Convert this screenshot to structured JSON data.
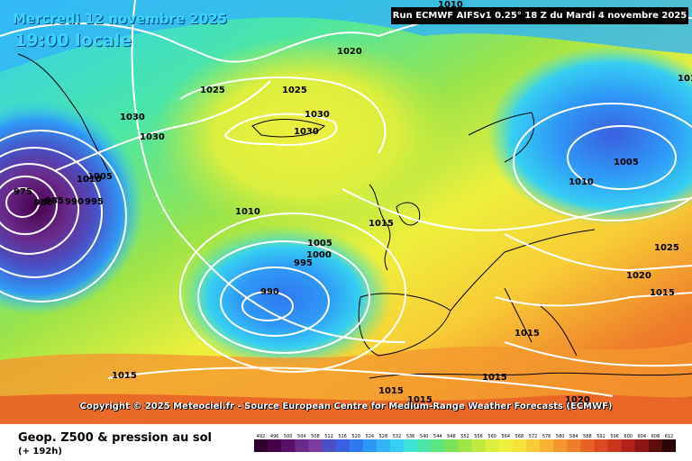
{
  "header": {
    "date_title": "Mercredi 12 novembre 2025",
    "local_time": "19:00 locale",
    "run_info": "Run ECMWF AIFSv1 0.25° 18 Z du Mardi 4 novembre 2025"
  },
  "copyright": "Copyright © 2025 Meteociel.fr - Source European Centre for Medium-Range Weather Forecasts (ECMWF)",
  "footer": {
    "title": "Geop. Z500 & pression au sol",
    "subtitle": "(+ 192h)"
  },
  "legend": {
    "values": [
      "492",
      "496",
      "500",
      "504",
      "508",
      "512",
      "516",
      "520",
      "524",
      "528",
      "532",
      "536",
      "540",
      "544",
      "548",
      "552",
      "556",
      "560",
      "564",
      "568",
      "572",
      "576",
      "580",
      "584",
      "588",
      "592",
      "596",
      "600",
      "604",
      "608",
      "612"
    ],
    "colors": [
      "#2b002b",
      "#46004a",
      "#5c0f6a",
      "#6a2a8a",
      "#7a3a9e",
      "#4a4fc4",
      "#3a5fe0",
      "#2f79f0",
      "#2f98f7",
      "#32b4f7",
      "#36cff2",
      "#3de3d8",
      "#49e6a8",
      "#5ee67e",
      "#7de45a",
      "#9ee447",
      "#bfe93f",
      "#dcee3e",
      "#eef03d",
      "#f7e23a",
      "#f8cc36",
      "#f7b232",
      "#f4982e",
      "#ef7e2a",
      "#e86226",
      "#dc4a22",
      "#c8361e",
      "#b0221a",
      "#8c1616",
      "#5e0d0d",
      "#2a0505"
    ]
  },
  "isobars": [
    "1010",
    "1015",
    "1020",
    "1025",
    "1025",
    "1030",
    "1030",
    "1030",
    "1030",
    "1010",
    "1005",
    "975",
    "980",
    "985",
    "990",
    "995",
    "1010",
    "1015",
    "1005",
    "1000",
    "995",
    "990",
    "1015",
    "1015",
    "1015",
    "1020",
    "1005",
    "1010",
    "1025",
    "1020",
    "1015",
    "1015",
    "1010"
  ]
}
